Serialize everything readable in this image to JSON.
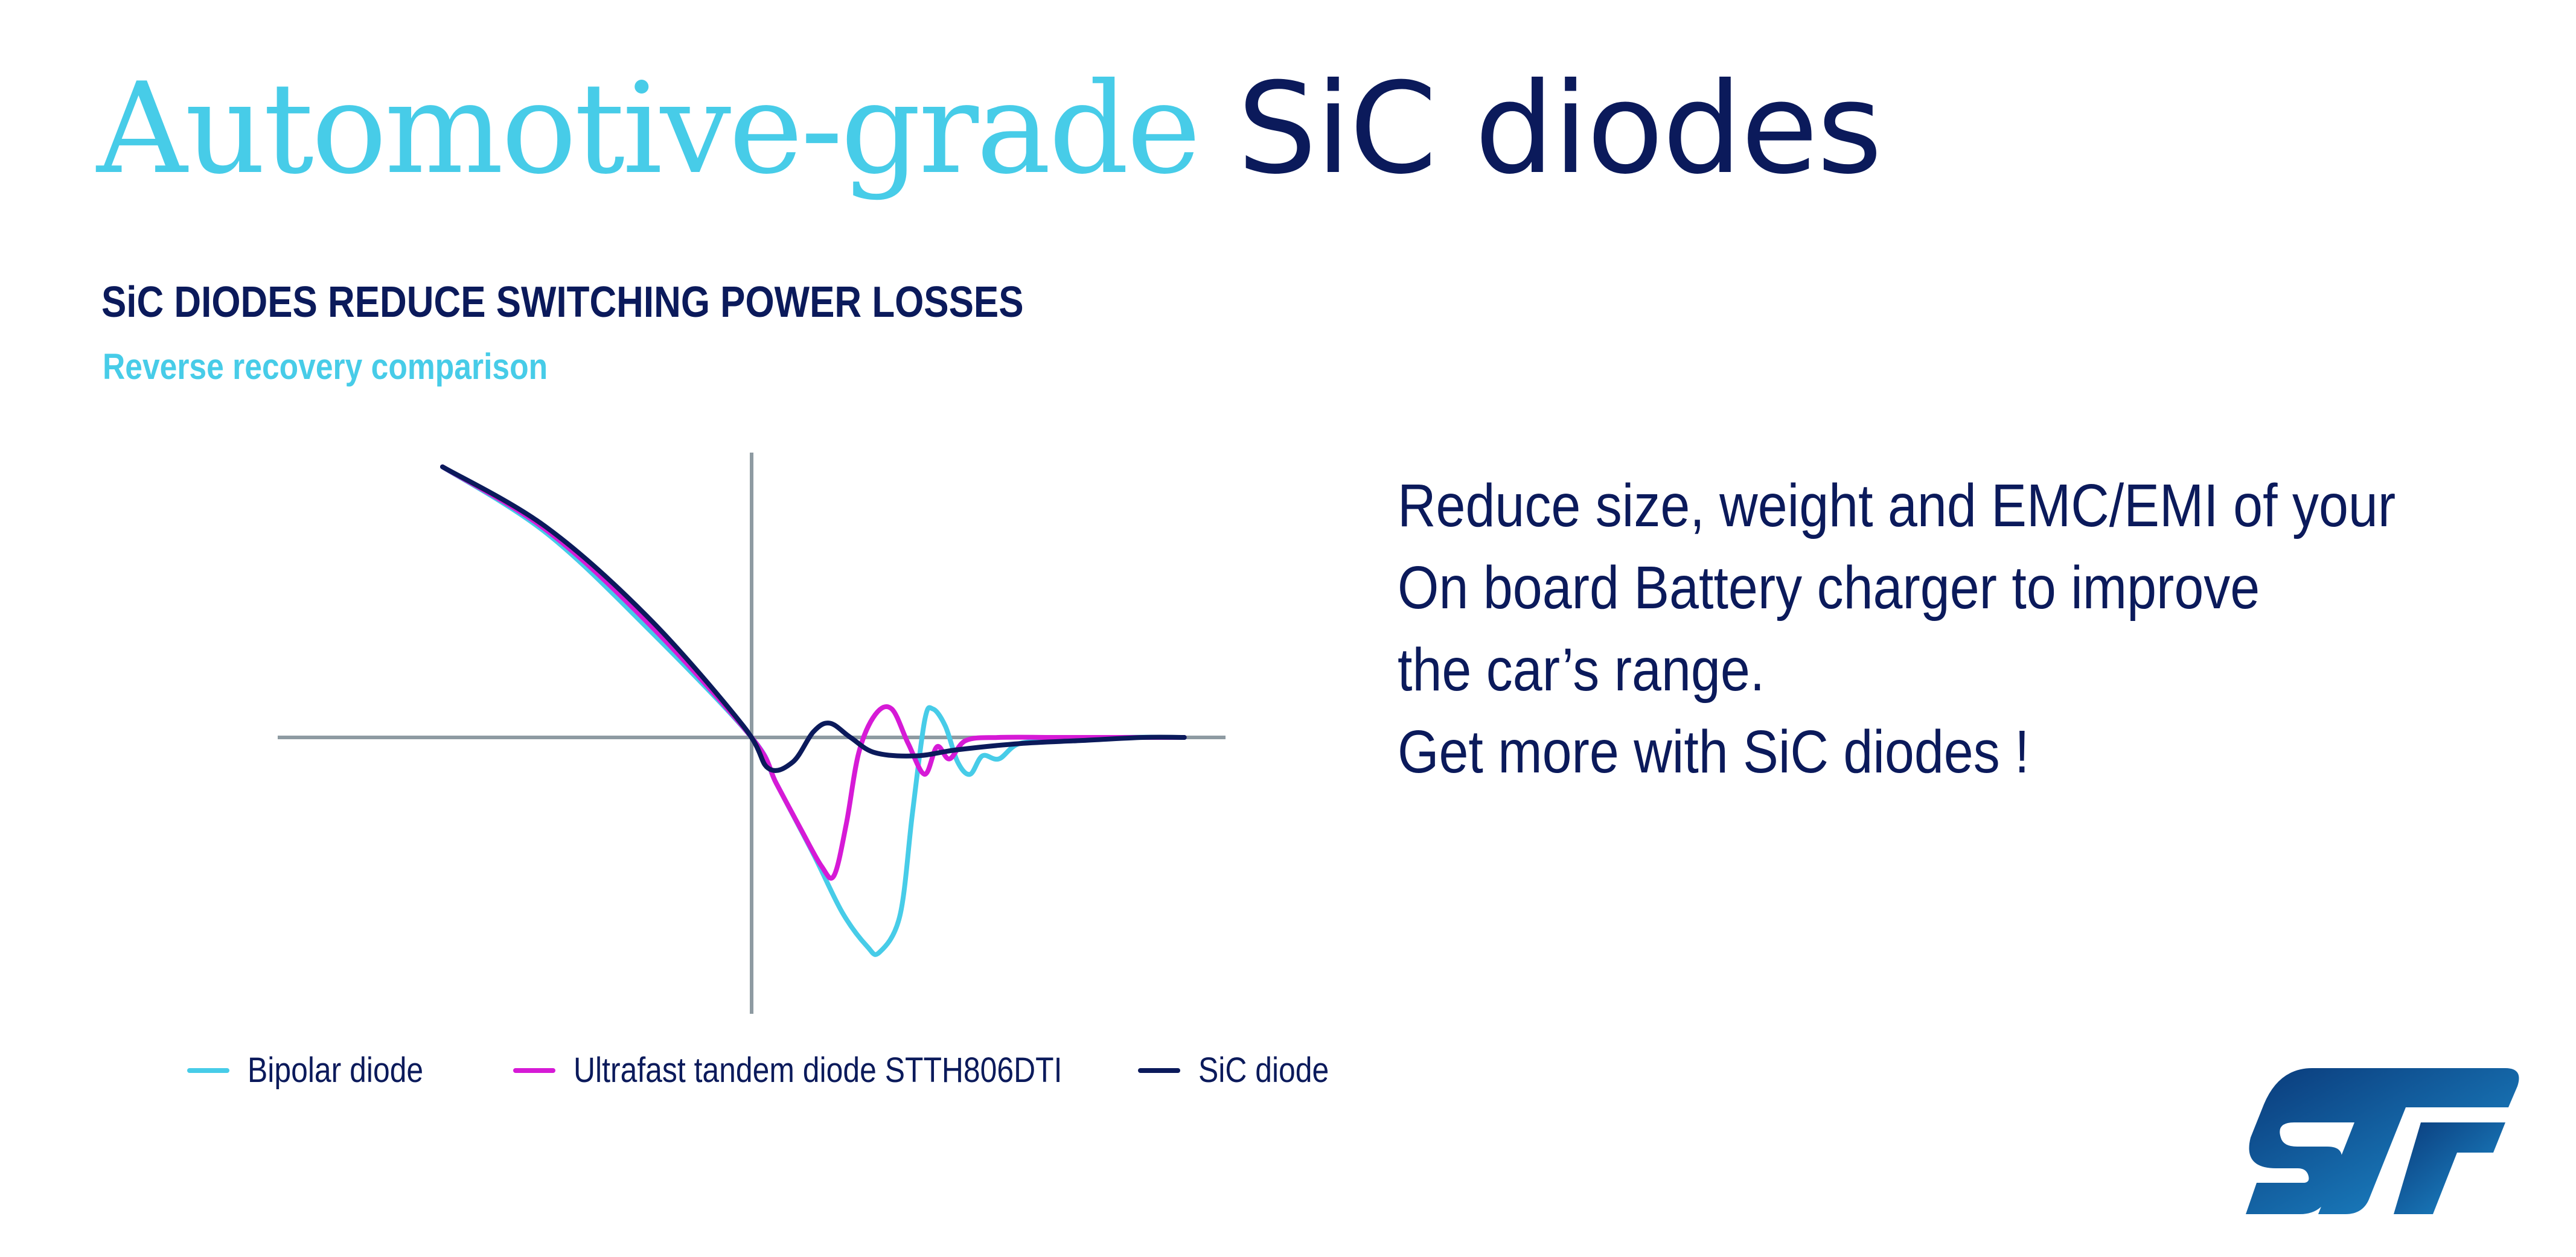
{
  "colors": {
    "navy": "#0b1a5b",
    "light_blue": "#47cce8",
    "magenta": "#d61ad6",
    "axis_gray": "#8e9ba2",
    "logo_blue_dark": "#0a3a7a",
    "logo_blue_light": "#1e8ecf"
  },
  "header": {
    "title_light": "Automotive-grade",
    "title_dark": "SiC diodes"
  },
  "chart_section": {
    "heading": "SiC DIODES REDUCE SWITCHING POWER LOSSES",
    "subheading": "Reverse recovery comparison"
  },
  "chart_data": {
    "type": "line",
    "title": "",
    "xlabel": "",
    "ylabel": "",
    "xlim": [
      -1,
      1.15
    ],
    "ylim": [
      -0.9,
      1.0
    ],
    "grid": false,
    "legend_position": "bottom",
    "series": [
      {
        "name": "Bipolar diode",
        "color": "#47cce8",
        "x": [
          -0.75,
          -0.5,
          -0.25,
          0.0,
          0.06,
          0.15,
          0.22,
          0.28,
          0.31,
          0.36,
          0.39,
          0.42,
          0.44,
          0.47,
          0.5,
          0.53,
          0.56,
          0.6,
          0.65,
          0.75,
          0.9,
          1.05
        ],
        "y": [
          0.95,
          0.72,
          0.38,
          0.0,
          -0.15,
          -0.38,
          -0.57,
          -0.68,
          -0.7,
          -0.58,
          -0.25,
          0.06,
          0.1,
          0.04,
          -0.08,
          -0.12,
          -0.06,
          -0.07,
          -0.02,
          -0.01,
          0.0,
          0.0
        ]
      },
      {
        "name": "Ultrafast tandem diode STTH806DTI",
        "color": "#d61ad6",
        "x": [
          -0.75,
          -0.5,
          -0.25,
          0.0,
          0.06,
          0.12,
          0.17,
          0.2,
          0.23,
          0.26,
          0.3,
          0.34,
          0.38,
          0.42,
          0.45,
          0.48,
          0.52,
          0.6,
          0.75,
          0.9,
          1.05
        ],
        "y": [
          0.95,
          0.73,
          0.4,
          0.0,
          -0.15,
          -0.3,
          -0.42,
          -0.45,
          -0.28,
          -0.05,
          0.08,
          0.1,
          -0.02,
          -0.12,
          -0.03,
          -0.07,
          -0.01,
          0.0,
          0.0,
          0.0,
          0.0
        ]
      },
      {
        "name": "SiC diode",
        "color": "#0b1a5b",
        "x": [
          -0.75,
          -0.5,
          -0.25,
          -0.02,
          0.04,
          0.1,
          0.15,
          0.19,
          0.24,
          0.3,
          0.4,
          0.5,
          0.65,
          0.8,
          0.95,
          1.05
        ],
        "y": [
          0.95,
          0.74,
          0.42,
          0.04,
          -0.1,
          -0.08,
          0.02,
          0.05,
          0.0,
          -0.05,
          -0.06,
          -0.04,
          -0.02,
          -0.01,
          0.0,
          0.0
        ]
      }
    ]
  },
  "message": {
    "lines": [
      "Reduce size, weight and EMC/EMI of your",
      "On board Battery charger to improve",
      "the car’s range.",
      "Get more with SiC diodes !"
    ]
  },
  "logo": {
    "text": "ST",
    "icon": "st-logo"
  }
}
